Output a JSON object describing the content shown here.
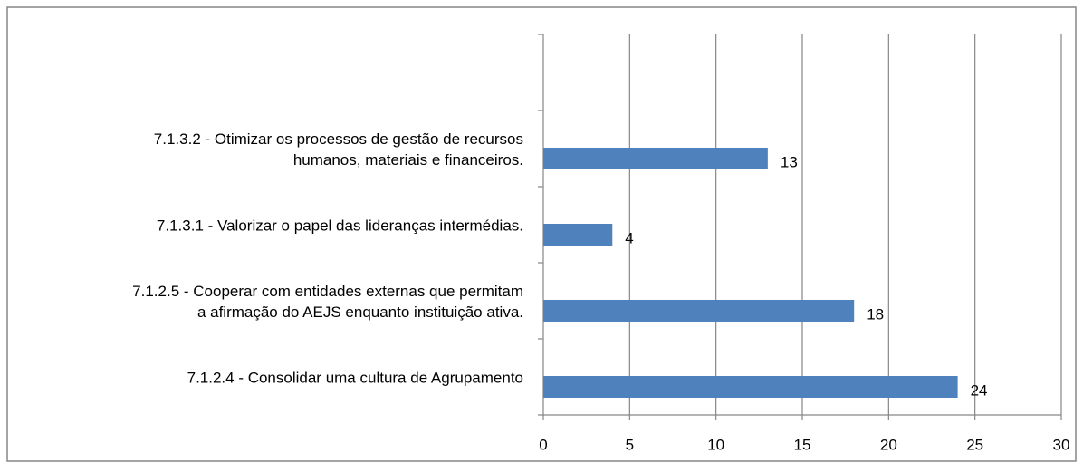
{
  "chart_data": {
    "type": "bar",
    "orientation": "horizontal",
    "categories": [
      null,
      [
        "7.1.3.2 - Otimizar os processos de gestão de recursos",
        "humanos, materiais e financeiros."
      ],
      [
        "7.1.3.1 - Valorizar o papel das lideranças intermédias."
      ],
      [
        "7.1.2.5 - Cooperar com entidades externas que permitam",
        "a afirmação do AEJS enquanto instituição ativa."
      ],
      [
        "7.1.2.4 - Consolidar uma cultura de Agrupamento"
      ]
    ],
    "values": [
      null,
      13,
      4,
      18,
      24
    ],
    "color": "#4f81bd",
    "xlim": [
      0,
      30
    ],
    "xticks": [
      0,
      5,
      10,
      15,
      20,
      25,
      30
    ],
    "grid": true
  }
}
